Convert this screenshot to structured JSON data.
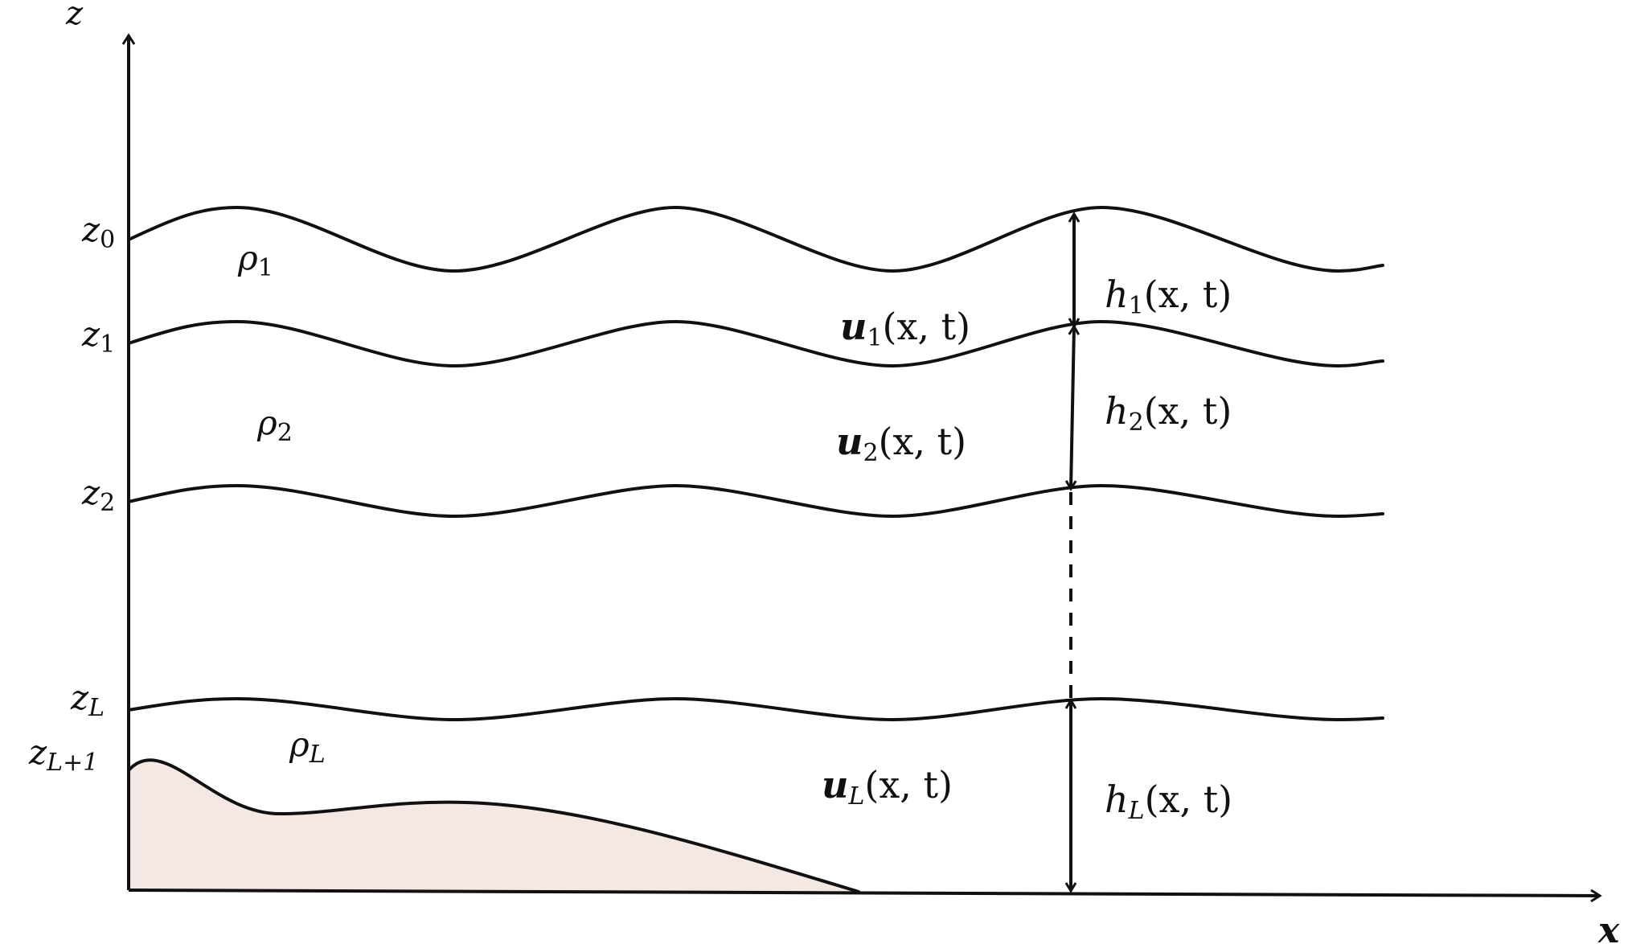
{
  "axes": {
    "x_label": "x",
    "z_label": "z"
  },
  "interface_labels": [
    {
      "base": "z",
      "sub": "0"
    },
    {
      "base": "z",
      "sub": "1"
    },
    {
      "base": "z",
      "sub": "2"
    },
    {
      "base": "z",
      "sub": "L"
    },
    {
      "base": "z",
      "sub": "L+1"
    }
  ],
  "densities": [
    {
      "base": "ρ",
      "sub": "1"
    },
    {
      "base": "ρ",
      "sub": "2"
    },
    {
      "base": "ρ",
      "sub": "L"
    }
  ],
  "velocities": [
    {
      "base": "u",
      "sub": "1",
      "args": "(x, t)"
    },
    {
      "base": "u",
      "sub": "2",
      "args": "(x, t)"
    },
    {
      "base": "u",
      "sub": "L",
      "args": "(x, t)"
    }
  ],
  "thicknesses": [
    {
      "base": "h",
      "sub": "1",
      "args": "(x, t)"
    },
    {
      "base": "h",
      "sub": "2",
      "args": "(x, t)"
    },
    {
      "base": "h",
      "sub": "L",
      "args": "(x, t)"
    }
  ],
  "colors": {
    "line": "#111111",
    "bathymetry_fill": "#f3e8e4"
  }
}
